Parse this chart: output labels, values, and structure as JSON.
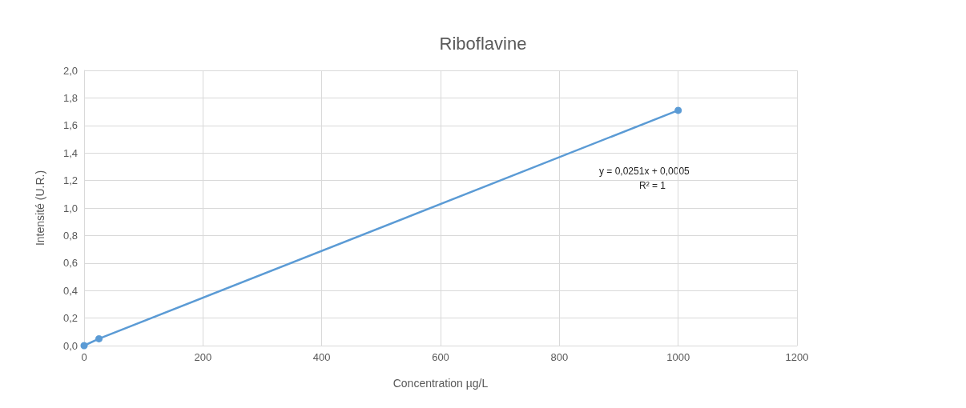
{
  "chart_data": {
    "type": "line",
    "title": "Riboflavine",
    "xlabel": "Concentration µg/L",
    "ylabel": "Intensité (U.R.)",
    "x": [
      0,
      25,
      1000
    ],
    "series": [
      {
        "color": "#5b9bd5",
        "values": [
          0,
          0.05,
          1.71
        ]
      }
    ],
    "xlim": [
      0,
      1200
    ],
    "xticks": [
      0,
      200,
      400,
      600,
      800,
      1000,
      1200
    ],
    "ylim": [
      0,
      2
    ],
    "yticks": [
      {
        "value": 0,
        "label": "0,0"
      },
      {
        "value": 0.2,
        "label": "0,2"
      },
      {
        "value": 0.4,
        "label": "0,4"
      },
      {
        "value": 0.6,
        "label": "0,6"
      },
      {
        "value": 0.8,
        "label": "0,8"
      },
      {
        "value": 1,
        "label": "1,0"
      },
      {
        "value": 1.2,
        "label": "1,2"
      },
      {
        "value": 1.4,
        "label": "1,4"
      },
      {
        "value": 1.6,
        "label": "1,6"
      },
      {
        "value": 1.8,
        "label": "1,8"
      },
      {
        "value": 2,
        "label": "2,0"
      }
    ],
    "grid": true,
    "marker": "circle",
    "line_style": "solid",
    "annotations": [
      "y = 0,0251x + 0,0005",
      "R² = 1"
    ]
  }
}
